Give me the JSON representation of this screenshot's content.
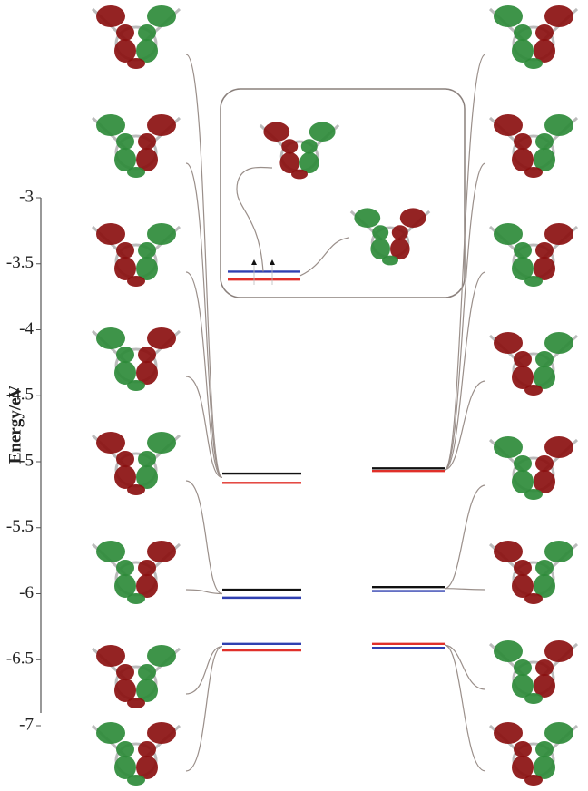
{
  "chart_data": {
    "type": "energy-level",
    "ylabel": "Energy/eV",
    "ylim": [
      -7,
      -3
    ],
    "yticks": [
      -3,
      -3.5,
      -4,
      -4.5,
      -5,
      -5.5,
      -6,
      -6.5,
      -7
    ],
    "left_levels": {
      "values": [
        -5.09,
        -5.16,
        -5.97,
        -6.03,
        -6.38,
        -6.43
      ],
      "colors": [
        "#111111",
        "#e0302a",
        "#111111",
        "#3040b0",
        "#3040b0",
        "#e0302a"
      ]
    },
    "right_levels": {
      "values": [
        -5.05,
        -5.07,
        -5.95,
        -5.98,
        -6.38,
        -6.41
      ],
      "colors": [
        "#111111",
        "#e0302a",
        "#111111",
        "#3040b0",
        "#e0302a",
        "#3040b0"
      ]
    },
    "inset_levels": {
      "values": [
        -3.56,
        -3.62
      ],
      "colors": [
        "#3040b0",
        "#e0302a"
      ]
    }
  }
}
